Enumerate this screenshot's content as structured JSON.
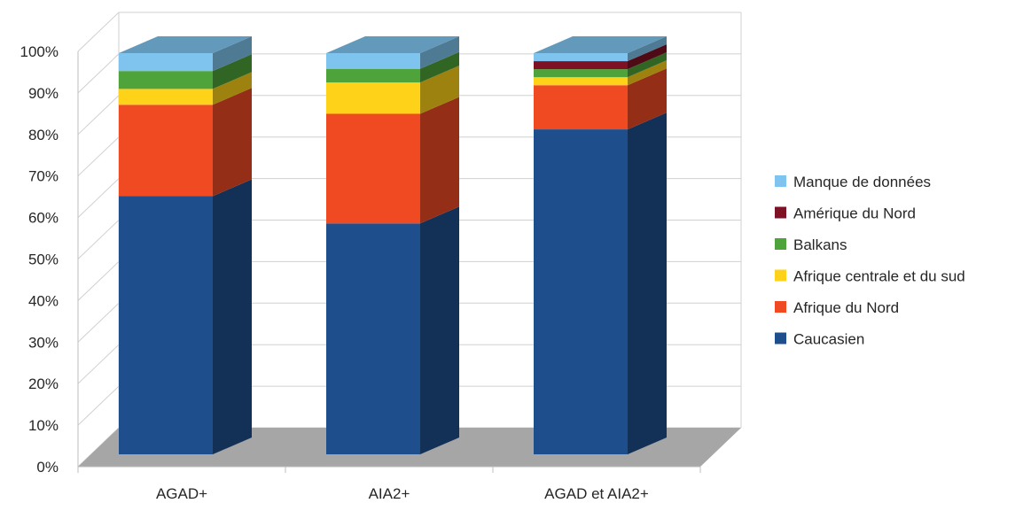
{
  "chart_data": {
    "type": "bar",
    "stacked": true,
    "percent_stacked": true,
    "three_d": true,
    "categories": [
      "AGAD+",
      "AIA2+",
      "AGAD et AIA2+"
    ],
    "series": [
      {
        "name": "Caucasien",
        "values": [
          65,
          59,
          81
        ],
        "color": "#1F4E8C"
      },
      {
        "name": "Afrique du Nord",
        "values": [
          23,
          28,
          11
        ],
        "color": "#F04A23"
      },
      {
        "name": "Afrique centrale et du sud",
        "values": [
          4,
          8,
          2
        ],
        "color": "#FFD21A"
      },
      {
        "name": "Balkans",
        "values": [
          4.5,
          3.5,
          2
        ],
        "color": "#4EA33A"
      },
      {
        "name": "Amérique du Nord",
        "values": [
          0,
          0,
          2
        ],
        "color": "#7E1124"
      },
      {
        "name": "Manque de données",
        "values": [
          4.5,
          4,
          2
        ],
        "color": "#7FC4EE"
      }
    ],
    "yticks": [
      "0%",
      "10%",
      "20%",
      "30%",
      "40%",
      "50%",
      "60%",
      "70%",
      "80%",
      "90%",
      "100%"
    ],
    "ylim": [
      0,
      100
    ],
    "title": "",
    "xlabel": "",
    "ylabel": "",
    "grid": true,
    "legend_position": "right"
  }
}
